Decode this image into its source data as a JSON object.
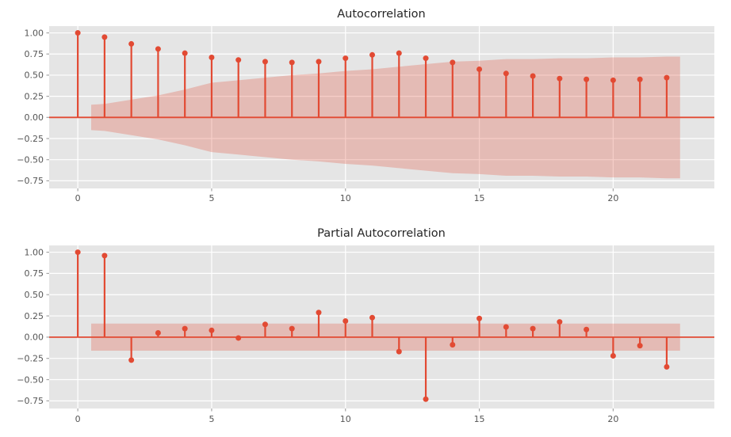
{
  "style": {
    "figure_bg": "#FFFFFF",
    "axes_bg": "#E5E5E5",
    "grid_color": "#FFFFFF",
    "stem_color": "#E24A33",
    "band_fill": "rgba(226,74,51,0.27)",
    "tick_color": "#A5A5A5",
    "tick_label_color": "#555555",
    "title_color": "#262626"
  },
  "chart_data": [
    {
      "type": "stem",
      "title": "Autocorrelation",
      "xlabel": "",
      "ylabel": "",
      "lags": [
        0,
        1,
        2,
        3,
        4,
        5,
        6,
        7,
        8,
        9,
        10,
        11,
        12,
        13,
        14,
        15,
        16,
        17,
        18,
        19,
        20,
        21,
        22
      ],
      "values": [
        1.0,
        0.95,
        0.87,
        0.81,
        0.76,
        0.71,
        0.68,
        0.66,
        0.65,
        0.66,
        0.7,
        0.74,
        0.76,
        0.7,
        0.65,
        0.57,
        0.52,
        0.49,
        0.46,
        0.45,
        0.44,
        0.45,
        0.47
      ],
      "conf_band": {
        "x": [
          0.5,
          1,
          2,
          3,
          4,
          5,
          6,
          7,
          8,
          9,
          10,
          11,
          12,
          13,
          14,
          15,
          16,
          17,
          18,
          19,
          20,
          21,
          22,
          22.5
        ],
        "upper": [
          0.15,
          0.16,
          0.21,
          0.26,
          0.33,
          0.41,
          0.44,
          0.47,
          0.5,
          0.52,
          0.55,
          0.57,
          0.6,
          0.63,
          0.66,
          0.67,
          0.69,
          0.69,
          0.7,
          0.7,
          0.71,
          0.71,
          0.72,
          0.72
        ],
        "lower": [
          -0.15,
          -0.16,
          -0.21,
          -0.26,
          -0.33,
          -0.41,
          -0.44,
          -0.47,
          -0.5,
          -0.52,
          -0.55,
          -0.57,
          -0.6,
          -0.63,
          -0.66,
          -0.67,
          -0.69,
          -0.69,
          -0.7,
          -0.7,
          -0.71,
          -0.71,
          -0.72,
          -0.72
        ]
      },
      "xlim": [
        -1.07,
        23.78
      ],
      "ylim": [
        -0.84,
        1.08
      ],
      "xticks": [
        0,
        5,
        10,
        15,
        20
      ],
      "xtick_labels": [
        "0",
        "5",
        "10",
        "15",
        "20"
      ],
      "yticks": [
        1.0,
        0.75,
        0.5,
        0.25,
        0.0,
        -0.25,
        -0.5,
        -0.75
      ],
      "ytick_labels": [
        "1.00",
        "0.75",
        "0.50",
        "0.25",
        "0.00",
        "−0.25",
        "−0.50",
        "−0.75"
      ],
      "grid": true,
      "zero_line": true,
      "legend": null
    },
    {
      "type": "stem",
      "title": "Partial Autocorrelation",
      "xlabel": "",
      "ylabel": "",
      "lags": [
        0,
        1,
        2,
        3,
        4,
        5,
        6,
        7,
        8,
        9,
        10,
        11,
        12,
        13,
        14,
        15,
        16,
        17,
        18,
        19,
        20,
        21,
        22
      ],
      "values": [
        1.0,
        0.96,
        -0.27,
        0.05,
        0.1,
        0.08,
        -0.01,
        0.15,
        0.1,
        0.29,
        0.19,
        0.23,
        -0.17,
        -0.73,
        -0.09,
        0.22,
        0.12,
        0.1,
        0.18,
        0.09,
        -0.22,
        -0.1,
        -0.35
      ],
      "conf_band": {
        "x": [
          0.5,
          22.5
        ],
        "upper": [
          0.16,
          0.16
        ],
        "lower": [
          -0.16,
          -0.16
        ]
      },
      "xlim": [
        -1.07,
        23.78
      ],
      "ylim": [
        -0.84,
        1.08
      ],
      "xticks": [
        0,
        5,
        10,
        15,
        20
      ],
      "xtick_labels": [
        "0",
        "5",
        "10",
        "15",
        "20"
      ],
      "yticks": [
        1.0,
        0.75,
        0.5,
        0.25,
        0.0,
        -0.25,
        -0.5,
        -0.75
      ],
      "ytick_labels": [
        "1.00",
        "0.75",
        "0.50",
        "0.25",
        "0.00",
        "−0.25",
        "−0.50",
        "−0.75"
      ],
      "grid": true,
      "zero_line": true,
      "legend": null
    }
  ]
}
